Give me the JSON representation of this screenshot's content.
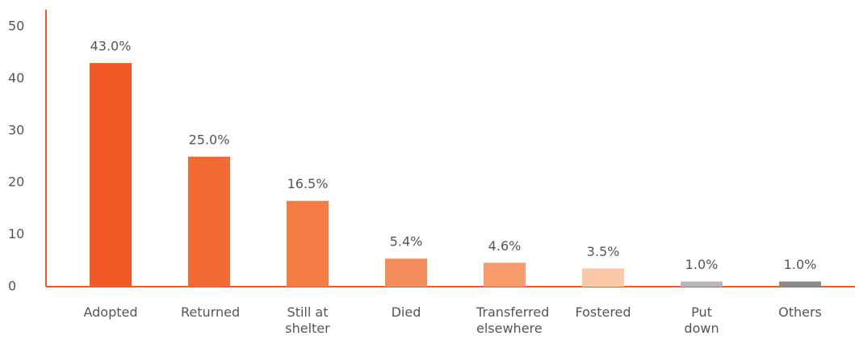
{
  "chart_data": {
    "type": "bar",
    "categories": [
      "Adopted",
      "Returned",
      "Still at shelter",
      "Died",
      "Transferred elsewhere",
      "Fostered",
      "Put down",
      "Others"
    ],
    "values": [
      43.0,
      25.0,
      16.5,
      5.4,
      4.6,
      3.5,
      1.0,
      1.0
    ],
    "value_labels": [
      "43.0%",
      "25.0%",
      "16.5%",
      "5.4%",
      "4.6%",
      "3.5%",
      "1.0%",
      "1.0%"
    ],
    "colors": [
      "#f15a24",
      "#f26a35",
      "#f47c45",
      "#f68d5c",
      "#f79a6c",
      "#f9c9a5",
      "#bdb5ae",
      "#8f8a86"
    ],
    "ylim": [
      0,
      50
    ],
    "yticks": [
      0,
      10,
      20,
      30,
      40,
      50
    ],
    "grid": false
  }
}
